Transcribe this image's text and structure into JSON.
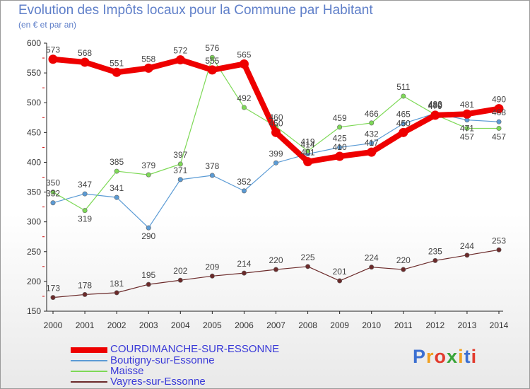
{
  "header": {
    "title": "Evolution des Impôts locaux pour la Commune par Habitant",
    "subtitle": "(en € et par an)"
  },
  "chart_data": {
    "type": "line",
    "title": "Evolution des Impôts locaux pour la Commune par Habitant",
    "ylabel": "(en € et par an)",
    "xlabel": "",
    "x": [
      "2000",
      "2001",
      "2002",
      "2003",
      "2004",
      "2005",
      "2006",
      "2007",
      "2008",
      "2009",
      "2010",
      "2011",
      "2012",
      "2013",
      "2014"
    ],
    "ylim": [
      150,
      600
    ],
    "yticks": [
      150,
      200,
      250,
      300,
      350,
      400,
      450,
      500,
      550,
      600
    ],
    "grid": false,
    "legend_position": "bottom-left",
    "series": [
      {
        "name": "COURDIMANCHE-SUR-ESSONNE",
        "color": "#ee0000",
        "values": [
          573,
          568,
          551,
          558,
          572,
          555,
          565,
          450,
          401,
          410,
          417,
          450,
          479,
          481,
          490
        ]
      },
      {
        "name": "Boutigny-sur-Essonne",
        "color": "#5b9bd5",
        "values": [
          332,
          347,
          341,
          290,
          371,
          378,
          352,
          399,
          414,
          425,
          432,
          465,
          482,
          471,
          468
        ]
      },
      {
        "name": "Maisse",
        "color": "#7ed957",
        "values": [
          350,
          319,
          385,
          379,
          397,
          576,
          492,
          460,
          419,
          459,
          466,
          511,
          480,
          457,
          457
        ]
      },
      {
        "name": "Vayres-sur-Essonne",
        "color": "#6b2a2a",
        "values": [
          173,
          178,
          181,
          195,
          202,
          209,
          214,
          220,
          225,
          201,
          224,
          220,
          235,
          244,
          253
        ]
      }
    ]
  },
  "legend": [
    {
      "label": "COURDIMANCHE-SUR-ESSONNE",
      "color": "#ee0000"
    },
    {
      "label": "Boutigny-sur-Essonne",
      "color": "#5b9bd5"
    },
    {
      "label": "Maisse",
      "color": "#7ed957"
    },
    {
      "label": "Vayres-sur-Essonne",
      "color": "#6b2a2a"
    }
  ],
  "logo": {
    "text": "Proxiti",
    "letters": [
      "P",
      "r",
      "o",
      "x",
      "i",
      "t",
      "i"
    ],
    "colors": [
      "#3b6fd1",
      "#f0a020",
      "#e23b2e",
      "#3aa53a",
      "#f0a020",
      "#3b6fd1",
      "#e23b2e"
    ]
  }
}
